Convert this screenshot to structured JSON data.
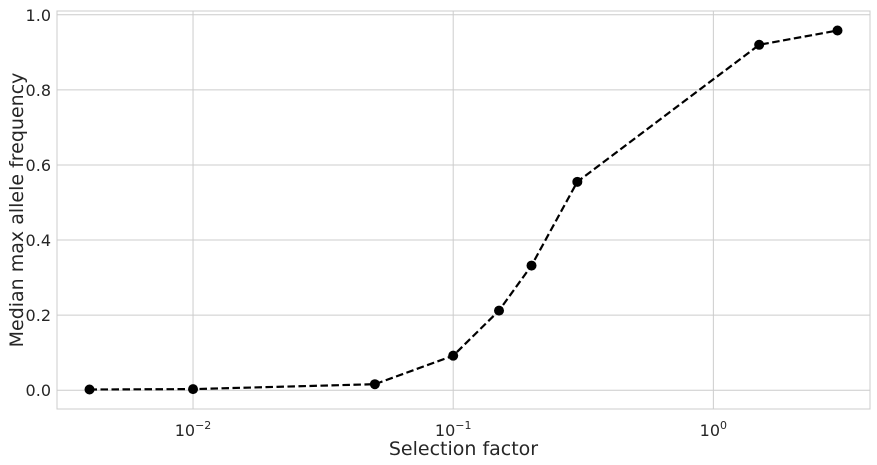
{
  "chart_data": {
    "type": "line",
    "xscale": "log",
    "title": "",
    "xlabel": "Selection factor",
    "ylabel": "Median max allele frequency",
    "xlim": [
      0.003,
      4.0
    ],
    "ylim": [
      -0.05,
      1.01
    ],
    "grid": true,
    "x_ticks": [
      {
        "value": 0.01,
        "base": "10",
        "exp": "−2"
      },
      {
        "value": 0.1,
        "base": "10",
        "exp": "−1"
      },
      {
        "value": 1,
        "base": "10",
        "exp": "0"
      }
    ],
    "y_ticks": [
      {
        "value": 0.0,
        "label": "0.0"
      },
      {
        "value": 0.2,
        "label": "0.2"
      },
      {
        "value": 0.4,
        "label": "0.4"
      },
      {
        "value": 0.6,
        "label": "0.6"
      },
      {
        "value": 0.8,
        "label": "0.8"
      },
      {
        "value": 1.0,
        "label": "1.0"
      }
    ],
    "series": [
      {
        "line_style": "dashed",
        "marker": "circle",
        "color": "#000000",
        "x": [
          0.004,
          0.01,
          0.05,
          0.1,
          0.15,
          0.2,
          0.3,
          1.5,
          3.0
        ],
        "y": [
          0.002,
          0.003,
          0.016,
          0.092,
          0.212,
          0.332,
          0.555,
          0.92,
          0.958
        ]
      }
    ]
  }
}
